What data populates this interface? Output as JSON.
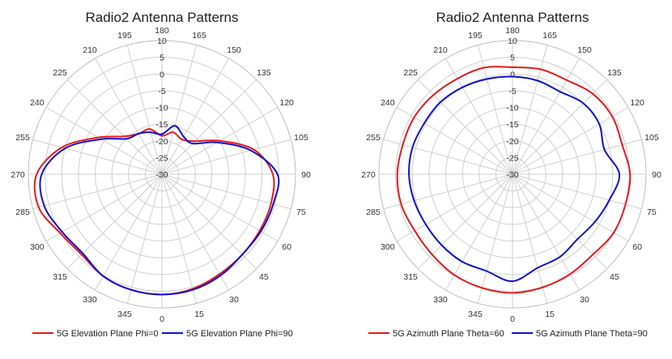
{
  "colors": {
    "series1": "#e41a1c",
    "series2": "#1010d0",
    "grid": "#cfcfcf",
    "text": "#222222"
  },
  "chart_data": [
    {
      "type": "polar-line",
      "title": "Radio2 Antenna Patterns",
      "angle_ticks": [
        "0",
        "15",
        "30",
        "45",
        "60",
        "75",
        "90",
        "105",
        "120",
        "135",
        "150",
        "165",
        "180",
        "195",
        "210",
        "225",
        "240",
        "255",
        "270",
        "285",
        "300",
        "315",
        "330",
        "345"
      ],
      "radial_ticks": [
        "10",
        "5",
        "0",
        "-5",
        "-10",
        "-15",
        "-20",
        "-25",
        "-30"
      ],
      "rlim": [
        -30,
        10
      ],
      "angles": [
        0,
        15,
        30,
        45,
        60,
        75,
        90,
        105,
        120,
        135,
        150,
        165,
        180,
        195,
        210,
        225,
        240,
        255,
        270,
        285,
        300,
        315,
        330,
        345
      ],
      "series": [
        {
          "name": "5G Elevation Plane Phi=0",
          "values": [
            6.0,
            5.5,
            4.5,
            4.0,
            3.8,
            3.8,
            3.2,
            -1.5,
            -10,
            -16,
            -18,
            -17,
            -18.5,
            -16,
            -16,
            -14,
            -8,
            1,
            7.5,
            8.2,
            5.2,
            4.0,
            5.2,
            5.8
          ]
        },
        {
          "name": "5G Elevation Plane Phi=90",
          "values": [
            6.0,
            5.8,
            5.0,
            4.0,
            4.2,
            4.5,
            4.6,
            -2.5,
            -11,
            -17,
            -17,
            -15,
            -18,
            -17,
            -16,
            -15,
            -9,
            0,
            6.0,
            6.5,
            4.5,
            3.5,
            5.2,
            5.8
          ]
        }
      ],
      "legend": "bottom"
    },
    {
      "type": "polar-line",
      "title": "Radio2 Antenna Patterns",
      "angle_ticks": [
        "0",
        "15",
        "30",
        "45",
        "60",
        "75",
        "90",
        "105",
        "120",
        "135",
        "150",
        "165",
        "180",
        "195",
        "210",
        "225",
        "240",
        "255",
        "270",
        "285",
        "300",
        "315",
        "330",
        "345"
      ],
      "radial_ticks": [
        "10",
        "5",
        "0",
        "-5",
        "-10",
        "-15",
        "-20",
        "-25",
        "-30"
      ],
      "rlim": [
        -30,
        10
      ],
      "angles": [
        0,
        15,
        30,
        45,
        60,
        75,
        90,
        105,
        120,
        135,
        150,
        165,
        180,
        195,
        210,
        225,
        240,
        255,
        270,
        285,
        300,
        315,
        330,
        345
      ],
      "series": [
        {
          "name": "5G Azimuth Plane Theta=60",
          "values": [
            5.5,
            5.0,
            4.5,
            4.0,
            5.0,
            5.0,
            5.2,
            4.0,
            4.5,
            4.0,
            2.5,
            2.5,
            2.0,
            3.0,
            3.0,
            3.5,
            4.0,
            4.0,
            4.5,
            4.5,
            3.8,
            4.0,
            4.8,
            5.2
          ]
        },
        {
          "name": "5G Azimuth Plane Theta=90",
          "values": [
            2.0,
            -1.0,
            -1.5,
            -2.5,
            -1.5,
            0.0,
            2.0,
            -1.5,
            0.0,
            0.0,
            -1.5,
            -1.0,
            -0.8,
            -0.5,
            0.0,
            0.5,
            0.5,
            1.0,
            1.0,
            0.5,
            0.0,
            0.0,
            0.2,
            0.0
          ]
        }
      ],
      "legend": "bottom"
    }
  ]
}
